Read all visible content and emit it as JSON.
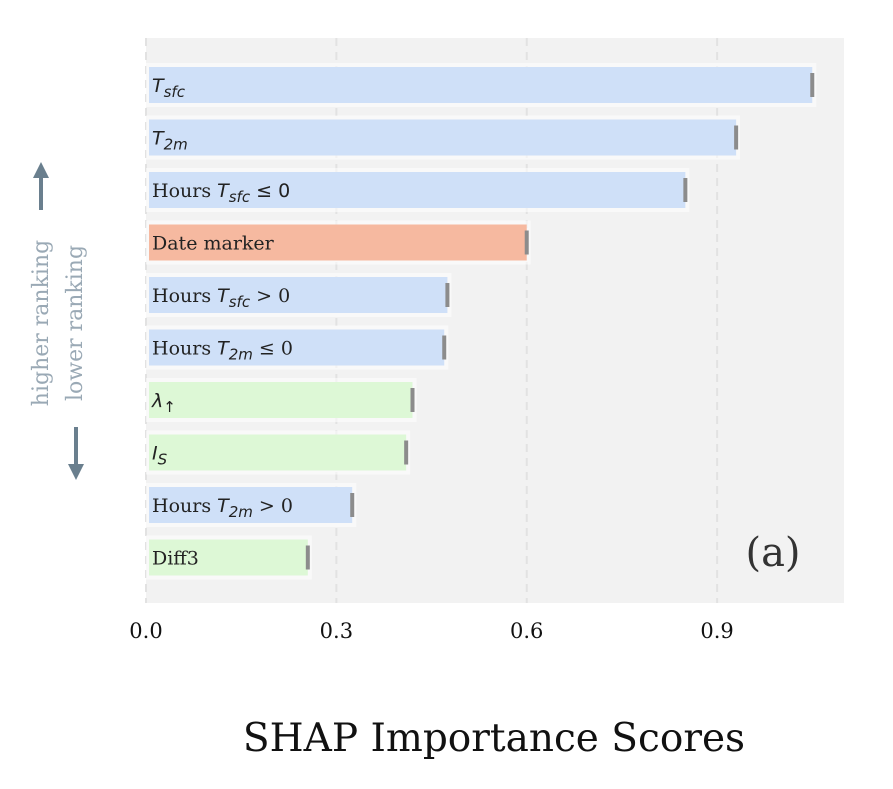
{
  "chart_data": {
    "type": "bar",
    "orientation": "horizontal",
    "xlabel": "SHAP Importance Scores",
    "panel_label": "(a)",
    "xlim": [
      0.0,
      1.1
    ],
    "xticks": [
      0.0,
      0.3,
      0.6,
      0.9
    ],
    "xtick_labels": [
      "0.0",
      "0.3",
      "0.6",
      "0.9"
    ],
    "grid": "vertical-dashed",
    "categories": [
      {
        "label": [
          {
            "t": "T",
            "i": true
          },
          {
            "t": "sfc",
            "i": true,
            "sub": true
          }
        ],
        "value": 1.05,
        "color": "#cfe0f8"
      },
      {
        "label": [
          {
            "t": "T",
            "i": true
          },
          {
            "t": "2m",
            "i": true,
            "sub": true
          }
        ],
        "value": 0.93,
        "color": "#cfe0f8"
      },
      {
        "label": [
          {
            "t": "Hours "
          },
          {
            "t": "T",
            "i": true
          },
          {
            "t": "sfc",
            "i": true,
            "sub": true
          },
          {
            "t": " ≤ 0",
            "sans": true
          }
        ],
        "value": 0.85,
        "color": "#cfe0f8"
      },
      {
        "label": [
          {
            "t": "Date marker"
          }
        ],
        "value": 0.6,
        "color": "#f6b9a0"
      },
      {
        "label": [
          {
            "t": "Hours "
          },
          {
            "t": "T",
            "i": true
          },
          {
            "t": "sfc",
            "i": true,
            "sub": true
          },
          {
            "t": "  >  0"
          }
        ],
        "value": 0.475,
        "color": "#cfe0f8"
      },
      {
        "label": [
          {
            "t": "Hours "
          },
          {
            "t": "T",
            "i": true
          },
          {
            "t": "2m",
            "i": true,
            "sub": true
          },
          {
            "t": "  ≤  0"
          }
        ],
        "value": 0.47,
        "color": "#cfe0f8"
      },
      {
        "label": [
          {
            "t": "λ",
            "i": true
          },
          {
            "t": "↑",
            "sub": true,
            "sans": true
          }
        ],
        "value": 0.42,
        "color": "#ddf8d6"
      },
      {
        "label": [
          {
            "t": "I",
            "i": true
          },
          {
            "t": "S",
            "i": true,
            "sub": true
          }
        ],
        "value": 0.41,
        "color": "#ddf8d6"
      },
      {
        "label": [
          {
            "t": "Hours "
          },
          {
            "t": "T",
            "i": true
          },
          {
            "t": "2m",
            "i": true,
            "sub": true
          },
          {
            "t": "  >  0"
          }
        ],
        "value": 0.325,
        "color": "#cfe0f8"
      },
      {
        "label": [
          {
            "t": "Diff3"
          }
        ],
        "value": 0.255,
        "color": "#ddf8d6"
      }
    ],
    "side_annotations": {
      "higher": "higher ranking",
      "lower": "lower ranking",
      "higher_color": "#9aa9b5",
      "lower_color": "#9aa9b5",
      "arrow_color": "#6a7f8e"
    },
    "colors": {
      "plot_bg": "#f2f2f2",
      "error_tick": "#8c8c8c",
      "grid": "#e2e2e2"
    }
  }
}
